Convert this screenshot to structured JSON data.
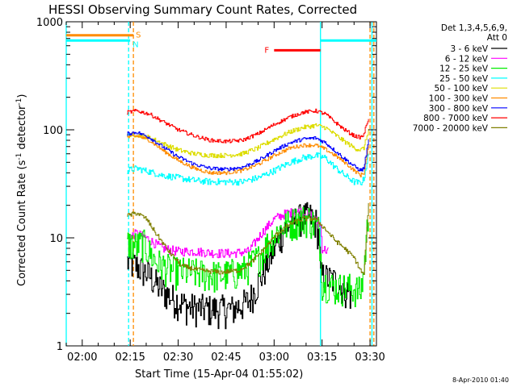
{
  "chart_data": {
    "type": "line",
    "title": "HESSI Observing Summary Count Rates, Corrected",
    "xlabel": "Start Time (15-Apr-04 01:55:02)",
    "ylabel_main": "Corrected Count Rate (s",
    "ylabel_sup1": "-1",
    "ylabel_mid": " detector",
    "ylabel_sup2": "-1",
    "ylabel_end": ")",
    "y_scale": "log",
    "ylim": [
      1,
      1000
    ],
    "xlim_minutes": [
      0,
      97
    ],
    "x_ticks": [
      {
        "m": 5,
        "label": "02:00"
      },
      {
        "m": 20,
        "label": "02:15"
      },
      {
        "m": 35,
        "label": "02:30"
      },
      {
        "m": 50,
        "label": "02:45"
      },
      {
        "m": 65,
        "label": "03:00"
      },
      {
        "m": 80,
        "label": "03:15"
      },
      {
        "m": 95,
        "label": "03:30"
      }
    ],
    "y_ticks": [
      {
        "v": 1,
        "label": "1"
      },
      {
        "v": 10,
        "label": "10"
      },
      {
        "v": 100,
        "label": "100"
      },
      {
        "v": 1000,
        "label": "1000"
      }
    ],
    "legend_header": [
      "Det 1,3,4,5,6,9,",
      "Att 0"
    ],
    "legend_placement": "right",
    "series": [
      {
        "name": "3 - 6 keV",
        "color": "#000000",
        "noise": 0.35,
        "points": [
          [
            19,
            6
          ],
          [
            22,
            5.5
          ],
          [
            26,
            4.5
          ],
          [
            29,
            3.5
          ],
          [
            33,
            2.8
          ],
          [
            38,
            2.3
          ],
          [
            45,
            2.2
          ],
          [
            52,
            2.2
          ],
          [
            57,
            2.6
          ],
          [
            61,
            4.5
          ],
          [
            65,
            8
          ],
          [
            68,
            12
          ],
          [
            72,
            15
          ],
          [
            76,
            16
          ],
          [
            78,
            14
          ],
          [
            79,
            10
          ],
          [
            79.5,
            4.5
          ],
          [
            84,
            4
          ],
          [
            89,
            3
          ]
        ]
      },
      {
        "name": "6 - 12 keV",
        "color": "#ff00ff",
        "noise": 0.1,
        "points": [
          [
            19,
            10
          ],
          [
            22,
            11
          ],
          [
            25,
            10
          ],
          [
            30,
            8
          ],
          [
            35,
            7.5
          ],
          [
            40,
            7.5
          ],
          [
            47,
            7.2
          ],
          [
            52,
            7.2
          ],
          [
            57,
            7.5
          ],
          [
            61,
            11
          ],
          [
            65,
            15
          ],
          [
            69,
            17
          ],
          [
            73,
            17.5
          ],
          [
            77,
            16
          ],
          [
            79.5,
            13
          ],
          [
            80,
            8
          ],
          [
            82,
            7.5
          ]
        ]
      },
      {
        "name": "12 - 25 keV",
        "color": "#00ee00",
        "noise": 0.35,
        "points": [
          [
            19,
            9
          ],
          [
            22,
            8.5
          ],
          [
            24,
            9
          ],
          [
            28,
            6
          ],
          [
            33,
            5
          ],
          [
            40,
            4.8
          ],
          [
            48,
            4.5
          ],
          [
            55,
            5
          ],
          [
            60,
            6.5
          ],
          [
            64,
            10
          ],
          [
            68,
            13
          ],
          [
            73,
            15
          ],
          [
            76,
            15
          ],
          [
            79,
            12
          ],
          [
            80,
            4
          ],
          [
            84,
            3.5
          ],
          [
            89,
            3.5
          ],
          [
            92,
            3.2
          ],
          [
            93,
            5
          ],
          [
            94.5,
            18
          ]
        ]
      },
      {
        "name": "25 - 50 keV",
        "color": "#00ffff",
        "noise": 0.07,
        "points": [
          [
            19,
            42
          ],
          [
            22,
            44
          ],
          [
            26,
            41
          ],
          [
            30,
            38
          ],
          [
            35,
            36
          ],
          [
            40,
            34
          ],
          [
            45,
            33
          ],
          [
            50,
            33
          ],
          [
            55,
            33
          ],
          [
            60,
            36
          ],
          [
            65,
            42
          ],
          [
            70,
            50
          ],
          [
            74,
            55
          ],
          [
            78,
            58
          ],
          [
            81,
            55
          ],
          [
            84,
            45
          ],
          [
            87,
            38
          ],
          [
            90,
            33
          ],
          [
            92,
            32
          ],
          [
            93,
            35
          ],
          [
            94.5,
            60
          ]
        ]
      },
      {
        "name": "50 - 100 keV",
        "color": "#dddd00",
        "noise": 0.05,
        "points": [
          [
            19,
            88
          ],
          [
            22,
            90
          ],
          [
            26,
            85
          ],
          [
            30,
            75
          ],
          [
            35,
            65
          ],
          [
            40,
            60
          ],
          [
            45,
            58
          ],
          [
            50,
            58
          ],
          [
            55,
            60
          ],
          [
            60,
            68
          ],
          [
            65,
            82
          ],
          [
            70,
            96
          ],
          [
            74,
            105
          ],
          [
            78,
            110
          ],
          [
            81,
            105
          ],
          [
            84,
            90
          ],
          [
            87,
            78
          ],
          [
            90,
            68
          ],
          [
            92,
            65
          ],
          [
            93,
            68
          ],
          [
            94.5,
            100
          ]
        ]
      },
      {
        "name": "100 - 300 keV",
        "color": "#ff8c00",
        "noise": 0.04,
        "points": [
          [
            19,
            85
          ],
          [
            22,
            88
          ],
          [
            26,
            80
          ],
          [
            30,
            65
          ],
          [
            35,
            52
          ],
          [
            40,
            44
          ],
          [
            45,
            40
          ],
          [
            50,
            40
          ],
          [
            55,
            42
          ],
          [
            60,
            48
          ],
          [
            65,
            58
          ],
          [
            70,
            68
          ],
          [
            74,
            72
          ],
          [
            78,
            72
          ],
          [
            81,
            66
          ],
          [
            84,
            58
          ],
          [
            87,
            50
          ],
          [
            90,
            42
          ],
          [
            92,
            38
          ],
          [
            93,
            40
          ],
          [
            94.5,
            70
          ]
        ]
      },
      {
        "name": "300 - 800 keV",
        "color": "#0000ff",
        "noise": 0.04,
        "points": [
          [
            19,
            92
          ],
          [
            22,
            95
          ],
          [
            26,
            85
          ],
          [
            30,
            70
          ],
          [
            35,
            56
          ],
          [
            40,
            48
          ],
          [
            45,
            44
          ],
          [
            50,
            43
          ],
          [
            55,
            45
          ],
          [
            60,
            52
          ],
          [
            65,
            64
          ],
          [
            70,
            76
          ],
          [
            74,
            82
          ],
          [
            78,
            84
          ],
          [
            81,
            76
          ],
          [
            84,
            64
          ],
          [
            87,
            54
          ],
          [
            90,
            46
          ],
          [
            92,
            42
          ],
          [
            93,
            44
          ],
          [
            94.5,
            80
          ]
        ]
      },
      {
        "name": "800 - 7000 keV",
        "color": "#ff0000",
        "noise": 0.04,
        "points": [
          [
            19,
            145
          ],
          [
            22,
            150
          ],
          [
            26,
            140
          ],
          [
            30,
            120
          ],
          [
            35,
            100
          ],
          [
            40,
            88
          ],
          [
            45,
            80
          ],
          [
            50,
            78
          ],
          [
            55,
            80
          ],
          [
            60,
            92
          ],
          [
            65,
            112
          ],
          [
            70,
            132
          ],
          [
            74,
            145
          ],
          [
            78,
            150
          ],
          [
            81,
            140
          ],
          [
            84,
            118
          ],
          [
            87,
            100
          ],
          [
            90,
            88
          ],
          [
            92,
            85
          ],
          [
            93,
            90
          ],
          [
            94.5,
            130
          ]
        ]
      },
      {
        "name": "7000 - 20000 keV",
        "color": "#808000",
        "noise": 0.05,
        "points": [
          [
            19,
            16
          ],
          [
            22,
            17
          ],
          [
            25,
            15
          ],
          [
            28,
            11
          ],
          [
            32,
            7.5
          ],
          [
            36,
            5.5
          ],
          [
            42,
            5
          ],
          [
            48,
            4.8
          ],
          [
            54,
            5
          ],
          [
            58,
            6
          ],
          [
            62,
            8
          ],
          [
            66,
            11
          ],
          [
            70,
            13.5
          ],
          [
            74,
            15
          ],
          [
            78,
            15
          ],
          [
            81,
            12
          ],
          [
            84,
            9.5
          ],
          [
            87,
            8
          ],
          [
            90,
            6.5
          ],
          [
            92,
            5
          ],
          [
            93,
            4.5
          ],
          [
            94.5,
            20
          ]
        ]
      }
    ],
    "flags": [
      {
        "label": "S",
        "color": "#ff8c00",
        "x0": 0,
        "x1": 21,
        "y": 750
      },
      {
        "label": "N",
        "color": "#00ffff",
        "x0": 0,
        "x1": 20,
        "y": 670
      },
      {
        "label": "",
        "color": "#00ffff",
        "x0": 79.5,
        "x1": 97,
        "y": 670
      },
      {
        "label": "F",
        "color": "#ff0000",
        "x0": 65,
        "x1": 79.5,
        "y": 545
      }
    ],
    "vlines": [
      {
        "m": 0,
        "color": "#00ffff",
        "dash": false
      },
      {
        "m": 19.5,
        "color": "#00ffff",
        "dash": true
      },
      {
        "m": 21,
        "color": "#ff8c00",
        "dash": true
      },
      {
        "m": 79.5,
        "color": "#00ffff",
        "dash": false
      },
      {
        "m": 95,
        "color": "#ff8c00",
        "dash": true
      },
      {
        "m": 95.6,
        "color": "#00ffff",
        "dash": false
      },
      {
        "m": 96.2,
        "color": "#ff8c00",
        "dash": true
      }
    ],
    "footer": "8-Apr-2010 01:40"
  }
}
